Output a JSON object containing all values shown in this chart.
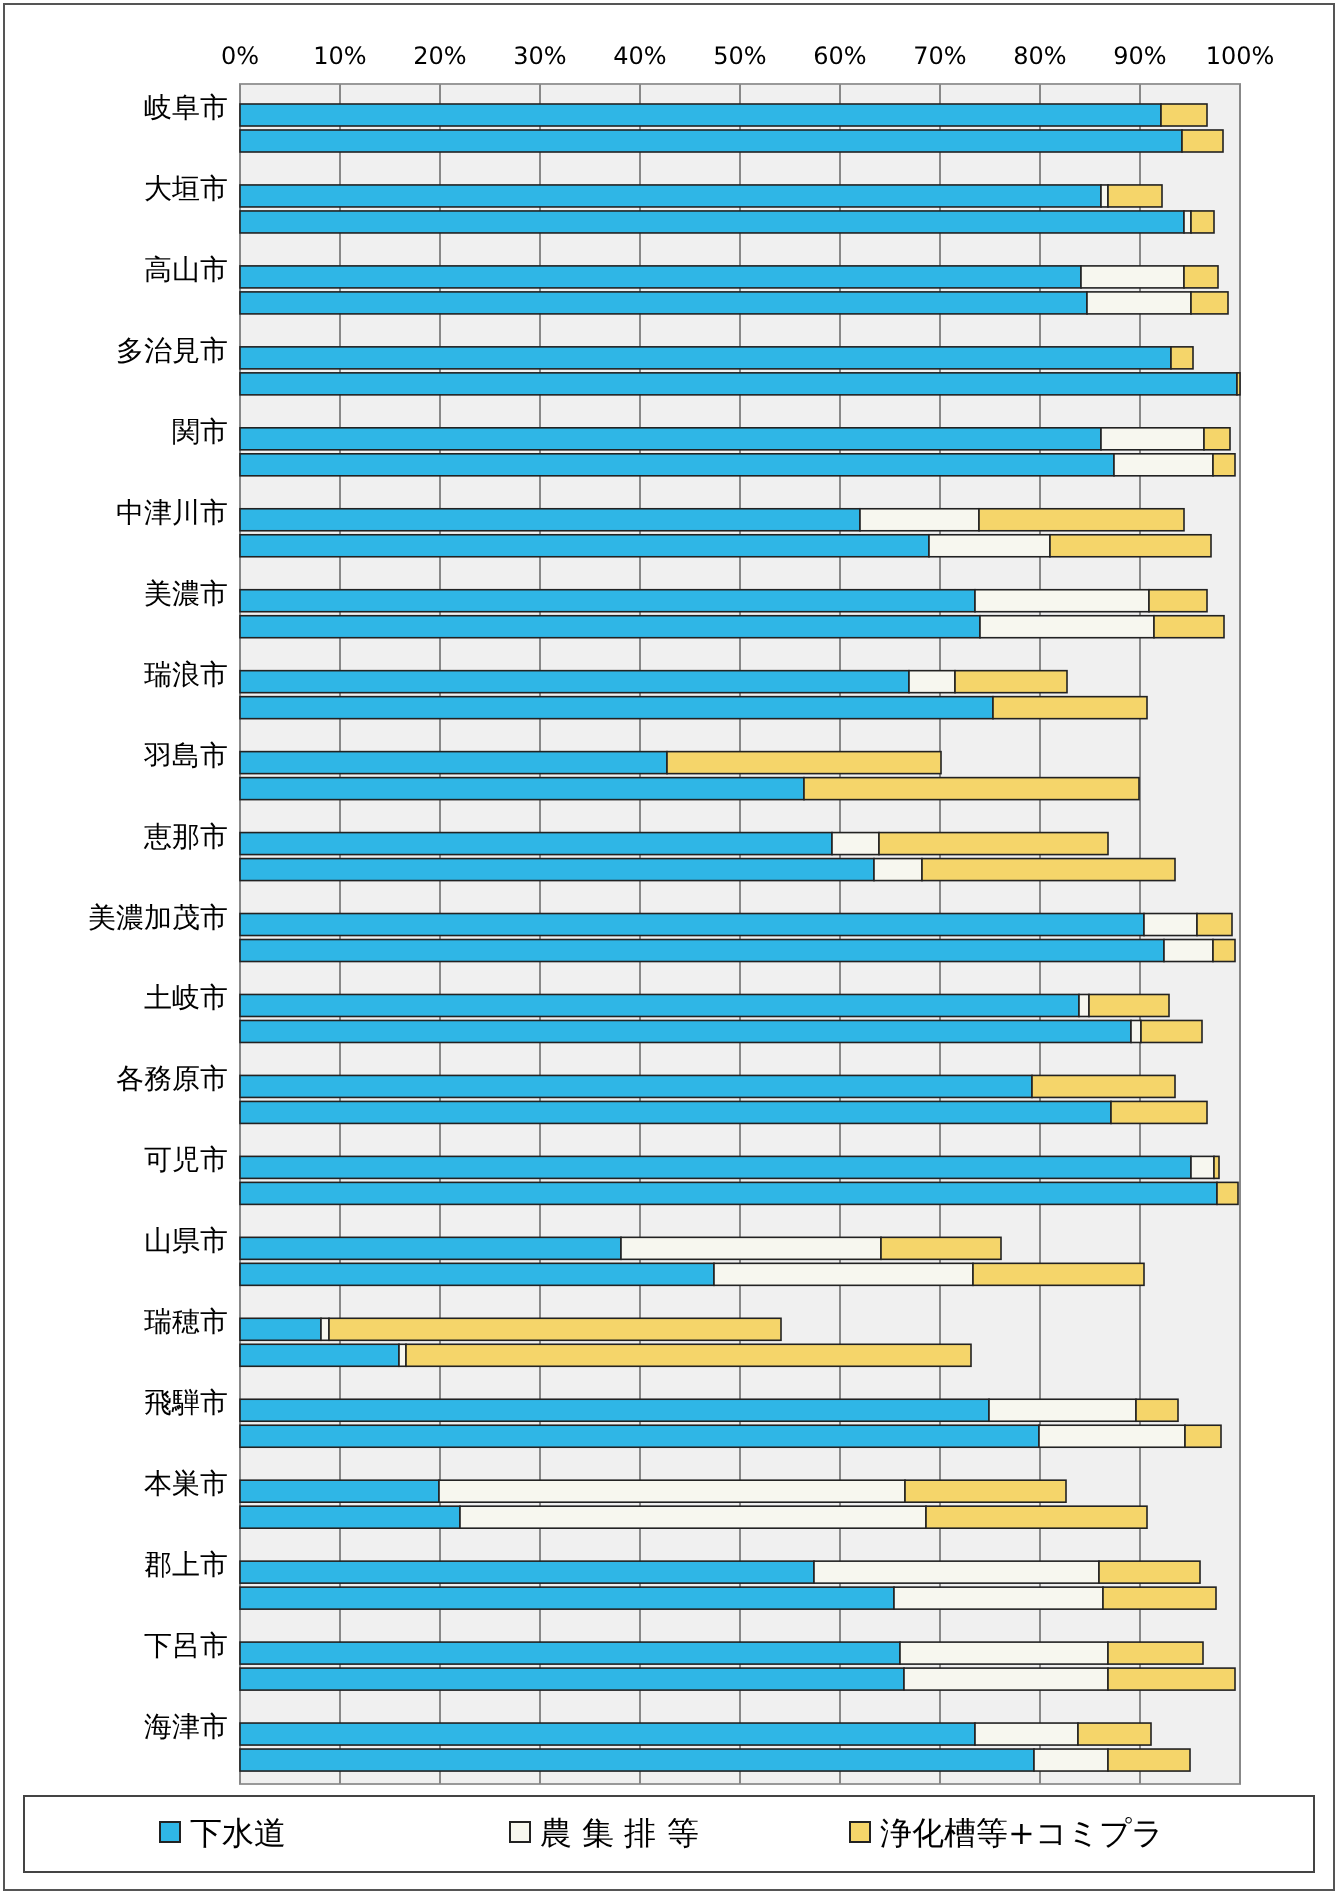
{
  "chart_data": {
    "type": "bar",
    "orientation": "horizontal",
    "stacked": true,
    "grid": "x",
    "legend": "bottom",
    "categories": [
      "岐阜市",
      null,
      "大垣市",
      null,
      "高山市",
      null,
      "多治見市",
      null,
      "関市",
      null,
      "中津川市",
      null,
      "美濃市",
      null,
      "瑞浪市",
      null,
      "羽島市",
      null,
      "恵那市",
      null,
      "美濃加茂市",
      null,
      "土岐市",
      null,
      "各務原市",
      null,
      "可児市",
      null,
      "山県市",
      null,
      "瑞穂市",
      null,
      "飛騨市",
      null,
      "本巣市",
      null,
      "郡上市",
      null,
      "下呂市",
      null,
      "海津市",
      null
    ],
    "xlim": [
      0,
      100
    ],
    "xticks": [
      {
        "value": 0,
        "label": "0%"
      },
      {
        "value": 10,
        "label": "10%"
      },
      {
        "value": 20,
        "label": "20%"
      },
      {
        "value": 30,
        "label": "30%"
      },
      {
        "value": 40,
        "label": "40%"
      },
      {
        "value": 50,
        "label": "50%"
      },
      {
        "value": 60,
        "label": "60%"
      },
      {
        "value": 70,
        "label": "70%"
      },
      {
        "value": 80,
        "label": "80%"
      },
      {
        "value": 90,
        "label": "90%"
      },
      {
        "value": 100,
        "label": "100%"
      }
    ],
    "series": [
      {
        "name": "下水道",
        "color": "#2fb6e6",
        "values": [
          92.1,
          94.2,
          86.1,
          94.4,
          84.1,
          84.7,
          93.1,
          99.7,
          86.1,
          87.4,
          62.0,
          68.9,
          73.5,
          74.0,
          66.9,
          75.3,
          42.7,
          56.4,
          59.2,
          63.4,
          90.4,
          92.4,
          83.9,
          89.1,
          79.2,
          87.1,
          95.1,
          97.7,
          38.1,
          47.4,
          8.1,
          15.9,
          74.9,
          79.9,
          19.9,
          22.0,
          57.4,
          65.4,
          66.0,
          66.4,
          73.5,
          79.4
        ]
      },
      {
        "name": "農 集 排 等",
        "color": "#f7f7ef",
        "values": [
          0,
          0,
          0.7,
          0.7,
          10.3,
          10.4,
          0,
          0,
          10.3,
          9.9,
          11.9,
          12.1,
          17.4,
          17.4,
          4.6,
          0,
          0,
          0,
          4.7,
          4.8,
          5.3,
          4.9,
          1.0,
          1.0,
          0,
          0,
          2.3,
          0,
          26.0,
          25.9,
          0.8,
          0.7,
          14.7,
          14.6,
          46.6,
          46.6,
          28.5,
          20.9,
          20.8,
          20.4,
          10.3,
          7.4
        ]
      },
      {
        "name": "浄化槽等+コミプラ",
        "color": "#f5d56a",
        "values": [
          4.6,
          4.1,
          5.4,
          2.3,
          3.4,
          3.7,
          2.2,
          0.3,
          2.6,
          2.2,
          20.5,
          16.1,
          5.8,
          7.0,
          11.2,
          15.4,
          27.4,
          33.5,
          22.9,
          25.3,
          3.5,
          2.2,
          8.0,
          6.1,
          14.3,
          9.6,
          0.5,
          2.1,
          12.0,
          17.1,
          45.2,
          56.5,
          4.2,
          3.6,
          16.1,
          22.1,
          10.1,
          11.3,
          9.5,
          12.7,
          7.3,
          8.2
        ]
      }
    ]
  }
}
